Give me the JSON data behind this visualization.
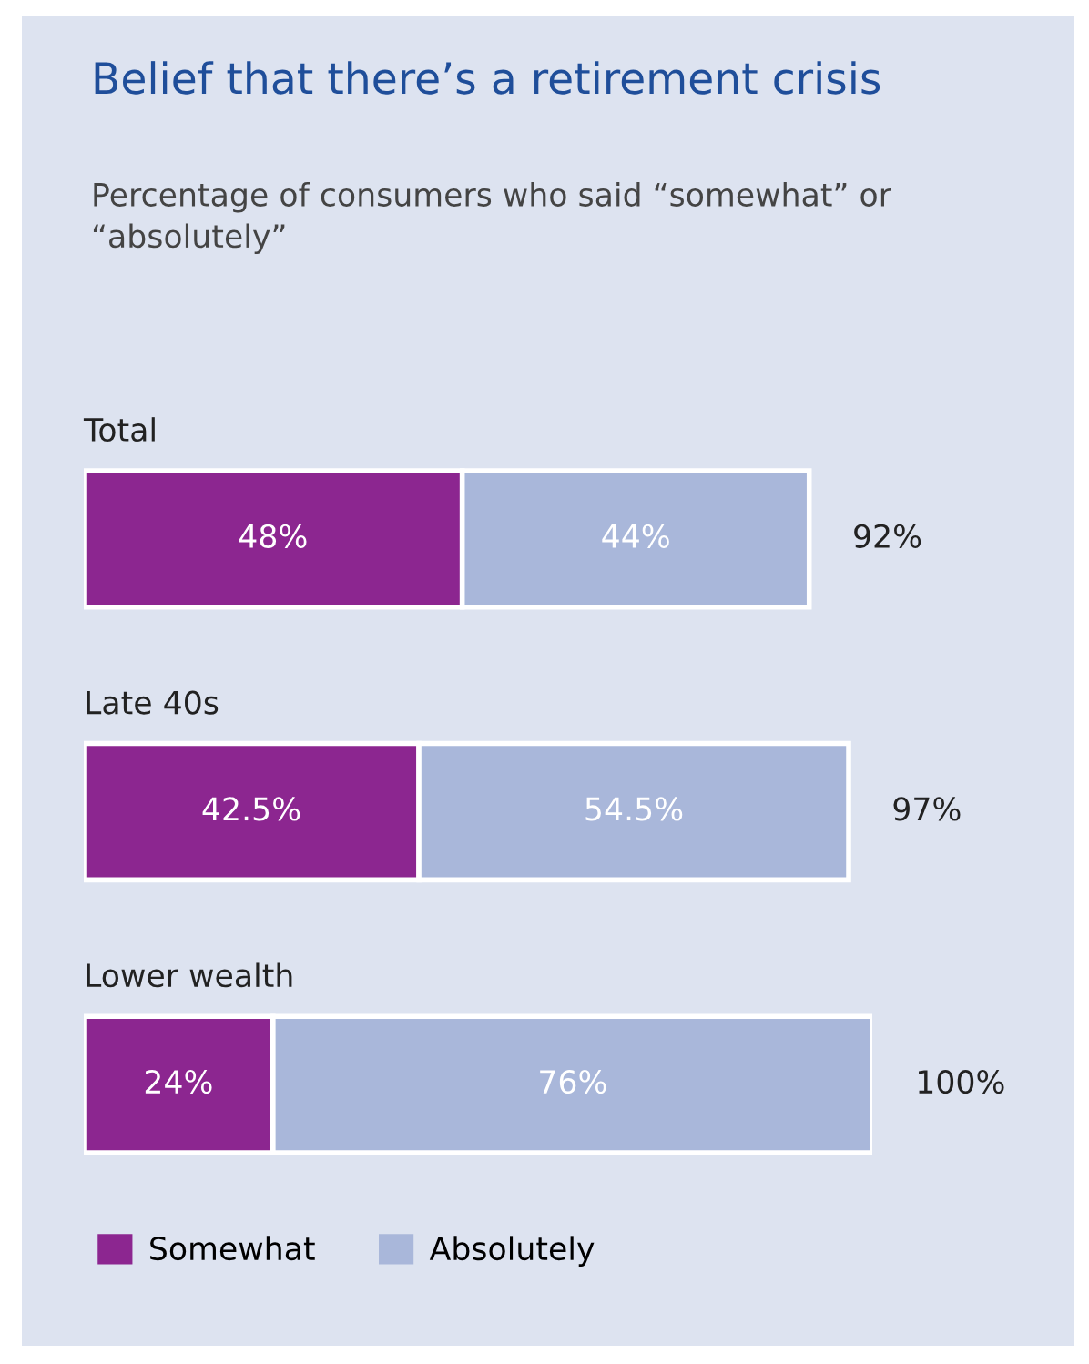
{
  "chart_data": {
    "type": "bar",
    "orientation": "horizontal",
    "stacked": true,
    "title": "Belief that there’s a retirement crisis",
    "subtitle": "Percentage of consumers who said “somewhat” or “absolutely”",
    "categories": [
      "Total",
      "Late 40s",
      "Lower wealth"
    ],
    "series": [
      {
        "name": "Somewhat",
        "color": "#8c2690",
        "values": [
          48,
          42.5,
          24
        ],
        "value_labels": [
          "48%",
          "42.5%",
          "24%"
        ]
      },
      {
        "name": "Absolutely",
        "color": "#a9b7da",
        "values": [
          44,
          54.5,
          76
        ],
        "value_labels": [
          "44%",
          "54.5%",
          "76%"
        ]
      }
    ],
    "totals": [
      "92%",
      "97%",
      "100%"
    ],
    "xlim": [
      0,
      100
    ],
    "legend": "bottom left"
  }
}
